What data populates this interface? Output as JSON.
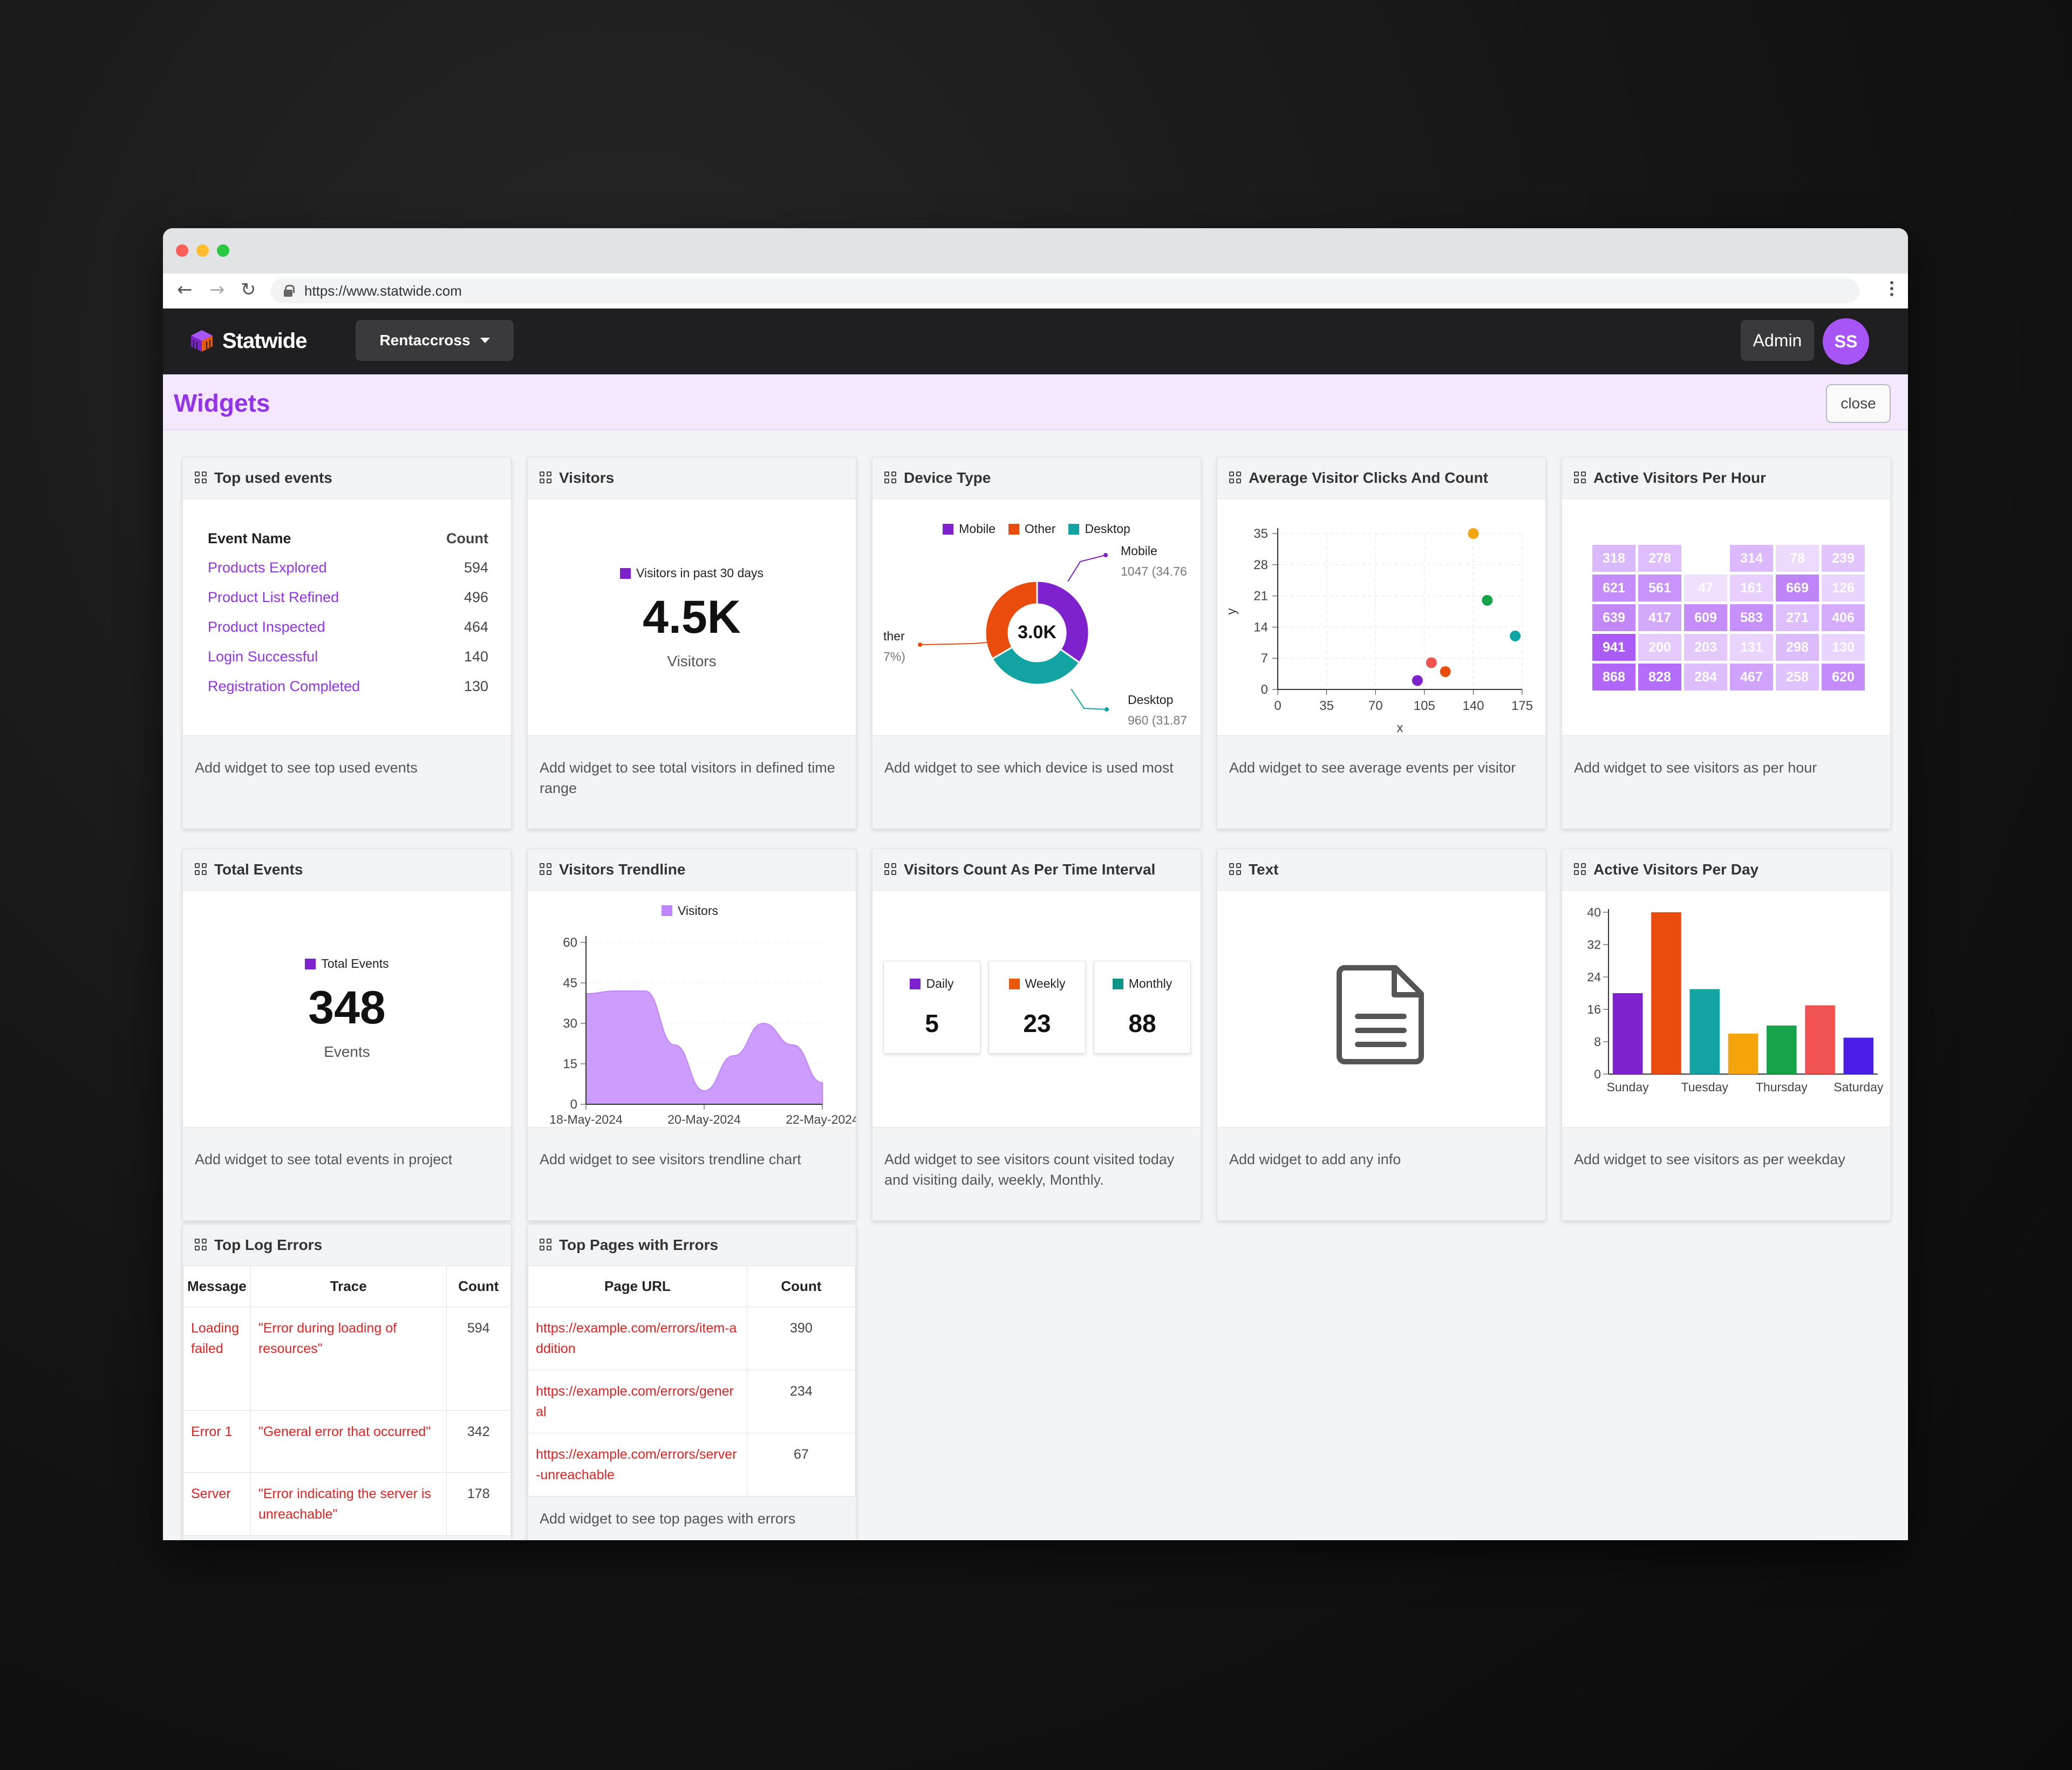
{
  "browser": {
    "url": "https://www.statwide.com"
  },
  "app": {
    "logo_text": "Statwide",
    "project_selector": "Rentaccross",
    "admin_label": "Admin",
    "avatar_initials": "SS",
    "accent_color": "#9333ea"
  },
  "widgets_bar": {
    "title": "Widgets",
    "close_label": "close"
  },
  "widgets": {
    "top_used_events": {
      "title": "Top used events",
      "col_event": "Event Name",
      "col_count": "Count",
      "rows": [
        {
          "name": "Products Explored",
          "count": "594"
        },
        {
          "name": "Product List Refined",
          "count": "496"
        },
        {
          "name": "Product Inspected",
          "count": "464"
        },
        {
          "name": "Login Successful",
          "count": "140"
        },
        {
          "name": "Registration Completed",
          "count": "130"
        }
      ],
      "footer": "Add widget to see top used events"
    },
    "visitors": {
      "title": "Visitors",
      "legend": "Visitors in past 30 days",
      "value": "4.5K",
      "unit": "Visitors",
      "footer": "Add widget to see total visitors in defined time range"
    },
    "device_type": {
      "title": "Device Type",
      "legend": [
        "Mobile",
        "Other",
        "Desktop"
      ],
      "center_label": "3.0K",
      "callout_mobile_name": "Mobile",
      "callout_mobile_value": "1047 (34.76",
      "callout_other_name": "ther",
      "callout_other_value": "7%)",
      "callout_desktop_name": "Desktop",
      "callout_desktop_value": "960 (31.87",
      "footer": "Add widget to see which device is used most"
    },
    "avg_clicks": {
      "title": "Average Visitor Clicks And Count",
      "footer": "Add widget to see average events per visitor"
    },
    "active_per_hour": {
      "title": "Active Visitors Per Hour",
      "cells": [
        "318",
        "278",
        "",
        "314",
        "78",
        "239",
        "621",
        "561",
        "47",
        "161",
        "669",
        "126",
        "639",
        "417",
        "609",
        "583",
        "271",
        "406",
        "941",
        "200",
        "203",
        "131",
        "298",
        "130",
        "868",
        "828",
        "284",
        "467",
        "258",
        "620"
      ],
      "footer": "Add widget to see visitors as per hour"
    },
    "total_events": {
      "title": "Total Events",
      "legend": "Total Events",
      "value": "348",
      "unit": "Events",
      "footer": "Add widget to see total events in project"
    },
    "visitors_trendline": {
      "title": "Visitors Trendline",
      "footer": "Add widget to see visitors trendline chart"
    },
    "visitors_interval": {
      "title": "Visitors Count As Per Time Interval",
      "boxes": [
        {
          "label": "Daily",
          "value": "5",
          "color": "#7e22ce"
        },
        {
          "label": "Weekly",
          "value": "23",
          "color": "#ea580c"
        },
        {
          "label": "Monthly",
          "value": "88",
          "color": "#0d9488"
        }
      ],
      "footer": "Add widget to see visitors count visited today and visiting daily, weekly, Monthly."
    },
    "text_widget": {
      "title": "Text",
      "icon": "document-icon",
      "footer": "Add widget to add any info"
    },
    "active_per_day": {
      "title": "Active Visitors Per Day",
      "footer": "Add widget to see visitors as per weekday"
    },
    "top_log_errors": {
      "title": "Top Log Errors",
      "col_message": "Message",
      "col_trace": "Trace",
      "col_count": "Count",
      "rows": [
        {
          "message": "Loading failed",
          "trace": "\"Error during loading of resources\"",
          "count": "594"
        },
        {
          "message": "Error 1",
          "trace": "\"General error that occurred\"",
          "count": "342"
        },
        {
          "message": "Server",
          "trace": "\"Error indicating the server is unreachable\"",
          "count": "178"
        }
      ]
    },
    "top_pages_errors": {
      "title": "Top Pages with Errors",
      "col_url": "Page URL",
      "col_count": "Count",
      "rows": [
        {
          "url": "https://example.com/errors/item-addition",
          "count": "390"
        },
        {
          "url": "https://example.com/errors/general",
          "count": "234"
        },
        {
          "url": "https://example.com/errors/server-unreachable",
          "count": "67"
        }
      ],
      "footer": "Add widget to see top pages with errors"
    }
  },
  "chart_data": [
    {
      "type": "pie",
      "chart": "device_type",
      "categories": [
        "Mobile",
        "Other",
        "Desktop"
      ],
      "values": [
        1047,
        1005,
        960
      ],
      "colors": [
        "#7e22ce",
        "#ea4c0e",
        "#14a3a3"
      ],
      "legend": "top"
    },
    {
      "type": "scatter",
      "chart": "avg_clicks",
      "xlabel": "x",
      "ylabel": "y",
      "xlim": [
        0,
        175
      ],
      "ylim": [
        0,
        35
      ],
      "x_ticks": [
        0,
        35,
        70,
        105,
        140,
        175
      ],
      "y_ticks": [
        0,
        7,
        14,
        21,
        28,
        35
      ],
      "points": [
        {
          "x": 100,
          "y": 2,
          "color": "#7e22ce"
        },
        {
          "x": 110,
          "y": 6,
          "color": "#f05252"
        },
        {
          "x": 120,
          "y": 4,
          "color": "#ea4c0e"
        },
        {
          "x": 140,
          "y": 35,
          "color": "#f5a40b"
        },
        {
          "x": 150,
          "y": 20,
          "color": "#16a34a"
        },
        {
          "x": 170,
          "y": 12,
          "color": "#0ea5a5"
        }
      ],
      "grid": true
    },
    {
      "type": "area",
      "chart": "visitors_trendline",
      "series_name": "Visitors",
      "x_ticks": [
        "18-May-2024",
        "20-May-2024",
        "22-May-2024"
      ],
      "y_ticks": [
        0,
        15,
        30,
        45,
        60
      ],
      "ylim": [
        0,
        60
      ],
      "x": [
        0,
        1,
        2,
        3,
        4,
        5,
        6,
        7,
        8
      ],
      "values": [
        41,
        42,
        42,
        22,
        5,
        18,
        30,
        22,
        8
      ],
      "color": "#c084fc"
    },
    {
      "type": "bar",
      "chart": "active_per_day",
      "categories": [
        "Sunday",
        "Monday",
        "Tuesday",
        "Wednesday",
        "Thursday",
        "Friday",
        "Saturday"
      ],
      "tick_labels": [
        "Sunday",
        "",
        "Tuesday",
        "",
        "Thursday",
        "",
        "Saturday"
      ],
      "values": [
        20,
        40,
        21,
        10,
        12,
        17,
        9
      ],
      "colors": [
        "#7e22ce",
        "#ea4c0e",
        "#14a3a3",
        "#f5a40b",
        "#16a34a",
        "#f05252",
        "#4c1de4"
      ],
      "ylim": [
        0,
        40
      ],
      "y_ticks": [
        0,
        8,
        16,
        24,
        32,
        40
      ]
    }
  ]
}
